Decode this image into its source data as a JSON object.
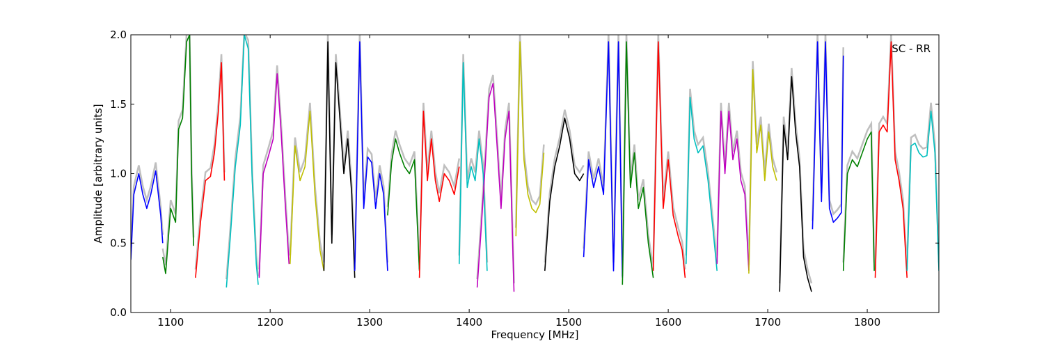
{
  "chart_data": {
    "type": "line",
    "title": "",
    "annotation": "SC - RR",
    "xlabel": "Frequency [MHz]",
    "ylabel": "Amplitude [arbitrary units]",
    "xlim": [
      1060,
      1872
    ],
    "ylim": [
      0.0,
      2.0
    ],
    "x_ticks": [
      1100,
      1200,
      1300,
      1400,
      1500,
      1600,
      1700,
      1800
    ],
    "x_tick_labels": [
      "1100",
      "1200",
      "1300",
      "1400",
      "1500",
      "1600",
      "1700",
      "1800"
    ],
    "y_ticks": [
      0.0,
      0.5,
      1.0,
      1.5,
      2.0
    ],
    "y_tick_labels": [
      "0.0",
      "0.5",
      "1.0",
      "1.5",
      "2.0"
    ],
    "grid": false,
    "background_color": "#bfbfbf",
    "series": [
      {
        "color": "#0000ff",
        "x": [
          1060,
          1063,
          1068,
          1072,
          1076,
          1080,
          1085,
          1090,
          1092
        ],
        "y": [
          0.38,
          0.85,
          1.0,
          0.85,
          0.75,
          0.85,
          1.02,
          0.7,
          0.5
        ]
      },
      {
        "color": "#007f00",
        "x": [
          1092,
          1095,
          1100,
          1105,
          1108,
          1112,
          1116,
          1119,
          1121,
          1123
        ],
        "y": [
          0.4,
          0.28,
          0.75,
          0.65,
          1.32,
          1.4,
          1.95,
          2.0,
          1.0,
          0.48
        ]
      },
      {
        "color": "#ff0000",
        "x": [
          1125,
          1130,
          1135,
          1140,
          1144,
          1148,
          1151,
          1154
        ],
        "y": [
          0.25,
          0.65,
          0.95,
          0.98,
          1.15,
          1.45,
          1.8,
          0.95
        ]
      },
      {
        "color": "#00bfbf",
        "x": [
          1156,
          1160,
          1165,
          1170,
          1174,
          1178,
          1182,
          1186,
          1188
        ],
        "y": [
          0.18,
          0.55,
          1.05,
          1.35,
          2.0,
          1.9,
          0.95,
          0.35,
          0.2
        ]
      },
      {
        "color": "#bf00bf",
        "x": [
          1189,
          1193,
          1198,
          1203,
          1207,
          1211,
          1215,
          1219
        ],
        "y": [
          0.25,
          1.0,
          1.12,
          1.25,
          1.72,
          1.3,
          0.8,
          0.35
        ]
      },
      {
        "color": "#bfbf00",
        "x": [
          1220,
          1225,
          1230,
          1235,
          1240,
          1245,
          1250,
          1254
        ],
        "y": [
          0.35,
          1.2,
          0.95,
          1.05,
          1.45,
          0.85,
          0.45,
          0.3
        ]
      },
      {
        "color": "#000000",
        "x": [
          1254,
          1258,
          1262,
          1266,
          1270,
          1274,
          1278,
          1282,
          1285
        ],
        "y": [
          0.3,
          1.95,
          0.5,
          1.8,
          1.4,
          1.0,
          1.25,
          0.85,
          0.25
        ]
      },
      {
        "color": "#0000ff",
        "x": [
          1285,
          1290,
          1294,
          1298,
          1302,
          1306,
          1310,
          1314,
          1318
        ],
        "y": [
          0.3,
          1.95,
          0.75,
          1.12,
          1.08,
          0.75,
          1.0,
          0.85,
          0.3
        ]
      },
      {
        "color": "#007f00",
        "x": [
          1318,
          1322,
          1326,
          1330,
          1335,
          1340,
          1345,
          1350
        ],
        "y": [
          0.7,
          1.08,
          1.25,
          1.15,
          1.05,
          1.0,
          1.1,
          0.3
        ]
      },
      {
        "color": "#ff0000",
        "x": [
          1350,
          1354,
          1358,
          1362,
          1366,
          1370,
          1375,
          1380,
          1385,
          1390
        ],
        "y": [
          0.25,
          1.45,
          0.95,
          1.25,
          0.95,
          0.8,
          1.0,
          0.95,
          0.85,
          1.05
        ]
      },
      {
        "color": "#00bfbf",
        "x": [
          1390,
          1394,
          1398,
          1402,
          1406,
          1410,
          1414,
          1418
        ],
        "y": [
          0.35,
          1.8,
          0.9,
          1.05,
          0.95,
          1.25,
          1.0,
          0.3
        ]
      },
      {
        "color": "#bf00bf",
        "x": [
          1408,
          1412,
          1416,
          1420,
          1424,
          1428,
          1432,
          1436,
          1440,
          1445
        ],
        "y": [
          0.18,
          0.6,
          1.05,
          1.55,
          1.65,
          1.2,
          0.75,
          1.25,
          1.45,
          0.15
        ]
      },
      {
        "color": "#bfbf00",
        "x": [
          1447,
          1451,
          1455,
          1459,
          1463,
          1467,
          1471,
          1475
        ],
        "y": [
          0.55,
          1.95,
          1.1,
          0.85,
          0.75,
          0.72,
          0.78,
          1.15
        ]
      },
      {
        "color": "#000000",
        "x": [
          1476,
          1481,
          1486,
          1491,
          1496,
          1501,
          1506,
          1511,
          1515
        ],
        "y": [
          0.3,
          0.8,
          1.05,
          1.2,
          1.4,
          1.25,
          1.0,
          0.95,
          1.0
        ]
      },
      {
        "color": "#0000ff",
        "x": [
          1515,
          1520,
          1525,
          1530,
          1535,
          1540,
          1545,
          1550,
          1554
        ],
        "y": [
          0.4,
          1.1,
          0.9,
          1.05,
          0.85,
          1.95,
          0.3,
          1.95,
          0.25
        ]
      },
      {
        "color": "#007f00",
        "x": [
          1554,
          1558,
          1562,
          1566,
          1570,
          1575,
          1580,
          1585
        ],
        "y": [
          0.2,
          1.95,
          0.9,
          1.15,
          0.75,
          0.9,
          0.5,
          0.25
        ]
      },
      {
        "color": "#ff0000",
        "x": [
          1585,
          1590,
          1595,
          1600,
          1605,
          1610,
          1614,
          1617
        ],
        "y": [
          0.3,
          1.95,
          0.75,
          1.1,
          0.7,
          0.55,
          0.45,
          0.25
        ]
      },
      {
        "color": "#00bfbf",
        "x": [
          1618,
          1622,
          1626,
          1630,
          1635,
          1640,
          1645,
          1649
        ],
        "y": [
          0.35,
          1.55,
          1.25,
          1.15,
          1.2,
          0.95,
          0.6,
          0.3
        ]
      },
      {
        "color": "#bf00bf",
        "x": [
          1649,
          1653,
          1657,
          1661,
          1665,
          1669,
          1673,
          1677,
          1681
        ],
        "y": [
          0.35,
          1.45,
          1.0,
          1.45,
          1.1,
          1.25,
          0.95,
          0.85,
          0.3
        ]
      },
      {
        "color": "#bfbf00",
        "x": [
          1681,
          1685,
          1689,
          1693,
          1697,
          1701,
          1705,
          1709
        ],
        "y": [
          0.28,
          1.75,
          1.15,
          1.35,
          0.95,
          1.3,
          1.05,
          0.95
        ]
      },
      {
        "color": "#000000",
        "x": [
          1712,
          1716,
          1720,
          1724,
          1728,
          1732,
          1736,
          1740,
          1744
        ],
        "y": [
          0.15,
          1.35,
          1.1,
          1.7,
          1.3,
          1.05,
          0.4,
          0.25,
          0.15
        ]
      },
      {
        "color": "#0000ff",
        "x": [
          1745,
          1750,
          1754,
          1758,
          1762,
          1766,
          1770,
          1774,
          1776
        ],
        "y": [
          0.6,
          1.95,
          0.8,
          1.95,
          0.75,
          0.65,
          0.68,
          0.72,
          1.85
        ]
      },
      {
        "color": "#007f00",
        "x": [
          1776,
          1780,
          1785,
          1790,
          1795,
          1800,
          1804,
          1807
        ],
        "y": [
          0.3,
          1.0,
          1.1,
          1.05,
          1.15,
          1.25,
          1.3,
          0.3
        ]
      },
      {
        "color": "#ff0000",
        "x": [
          1808,
          1812,
          1816,
          1820,
          1824,
          1828,
          1832,
          1836,
          1840
        ],
        "y": [
          0.25,
          1.3,
          1.35,
          1.3,
          1.95,
          1.1,
          0.95,
          0.75,
          0.25
        ]
      },
      {
        "color": "#00bfbf",
        "x": [
          1840,
          1844,
          1848,
          1852,
          1856,
          1860,
          1864,
          1868,
          1872
        ],
        "y": [
          0.3,
          1.2,
          1.22,
          1.15,
          1.12,
          1.13,
          1.45,
          1.15,
          0.3
        ]
      }
    ]
  }
}
